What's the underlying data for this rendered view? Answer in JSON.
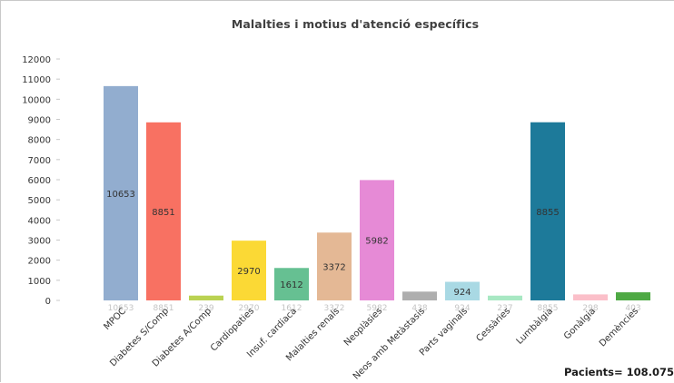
{
  "chart_data": {
    "type": "bar",
    "title": "Malalties i motius d'atenció específics",
    "xlabel": "",
    "ylabel": "",
    "ylim": [
      0,
      12000
    ],
    "yticks": [
      0,
      1000,
      2000,
      3000,
      4000,
      5000,
      6000,
      7000,
      8000,
      9000,
      10000,
      11000,
      12000
    ],
    "grid": false,
    "legend": "none",
    "categories": [
      "MPOC",
      "Diabetes S/Comp",
      "Diabetes A/Comp",
      "Cardiopaties",
      "Insuf. cardiaca",
      "Malalties renals",
      "Neoplàsies",
      "Neos amb Metàstasis",
      "Parts vaginals",
      "Cessàries",
      "Lumbàlgia",
      "Gonàlgia",
      "Demències"
    ],
    "values": [
      10653,
      8851,
      239,
      2970,
      1612,
      3372,
      5982,
      438,
      924,
      237,
      8855,
      298,
      403
    ],
    "inside_labels": [
      "10653",
      "8851",
      "",
      "2970",
      "1612",
      "3372",
      "5982",
      "",
      "924",
      "",
      "8855",
      "",
      ""
    ],
    "base_labels": [
      "10653",
      "8851",
      "239",
      "2970",
      "1612",
      "3372",
      "5982",
      "438",
      "924",
      "237",
      "8855",
      "298",
      "403"
    ],
    "colors": [
      "#92adcf",
      "#f87162",
      "#bad252",
      "#fbd935",
      "#66c092",
      "#e4b895",
      "#e68ad6",
      "#aeaeae",
      "#a9d9e4",
      "#a8e8c3",
      "#1d7a9a",
      "#fbbfc9",
      "#4ea944"
    ]
  },
  "footer": {
    "note": "Pacients= 108.075"
  }
}
